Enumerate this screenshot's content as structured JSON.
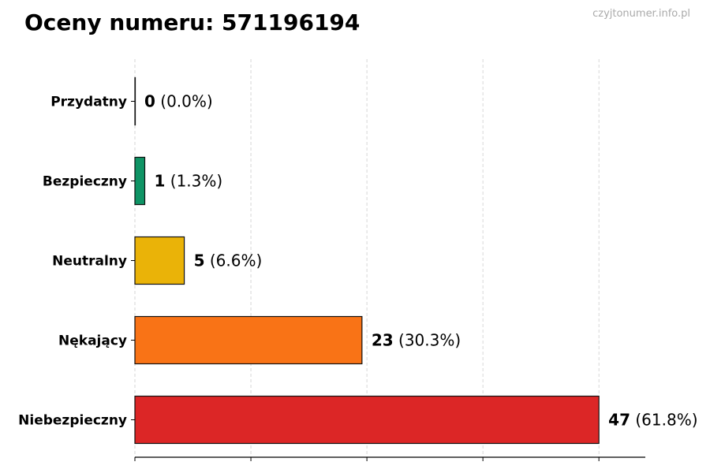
{
  "chart_data": {
    "type": "bar",
    "orientation": "horizontal",
    "title": "Oceny numeru: 571196194",
    "watermark": "czyjtonumer.info.pl",
    "categories": [
      "Przydatny",
      "Bezpieczny",
      "Neutralny",
      "Nękający",
      "Niebezpieczny"
    ],
    "values": [
      0,
      1,
      5,
      23,
      47
    ],
    "percent_labels": [
      "(0.0%)",
      "(1.3%)",
      "(6.6%)",
      "(30.3%)",
      "(61.8%)"
    ],
    "colors": [
      "#22c55e",
      "#0f9465",
      "#eab308",
      "#f97316",
      "#dc2626"
    ],
    "xlim": [
      0,
      51.7
    ],
    "xticks": [
      0,
      11.75,
      23.5,
      35.25,
      47
    ],
    "xtick_labels_shown": false,
    "grid": "vertical dashed",
    "xlabel": "",
    "ylabel": ""
  }
}
